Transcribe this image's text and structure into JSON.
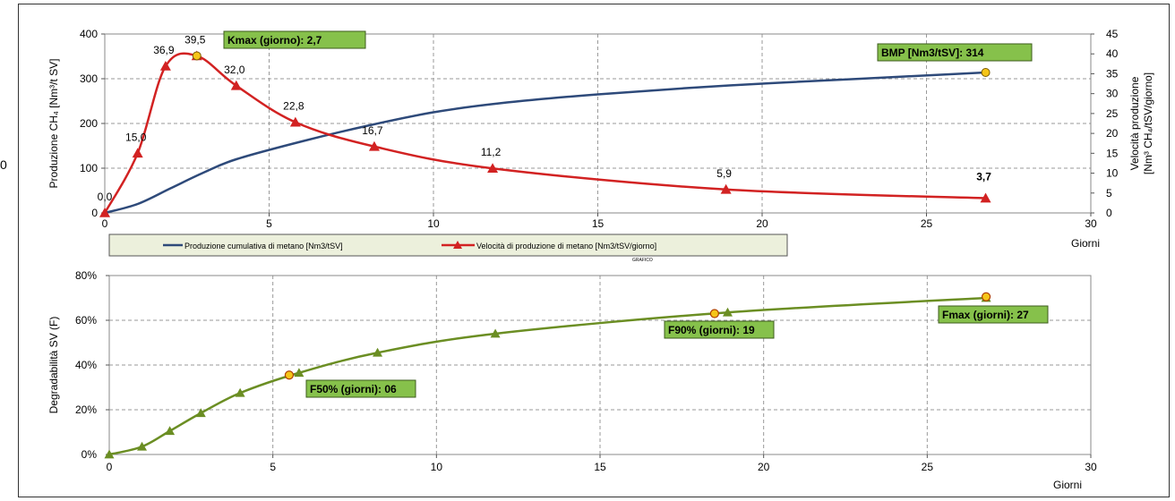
{
  "stray_char": "0",
  "chart_data": [
    {
      "type": "line",
      "id": "top",
      "xlabel": "Giorni",
      "ylabel_left": "Produzione CH₄ [Nm³/t SV]",
      "ylabel_right_lines": [
        "Velocità produzione",
        "[Nm³ CH₄/tSV/giorno]"
      ],
      "xlim": [
        0,
        30
      ],
      "ylim_left": [
        0,
        400
      ],
      "ylim_right": [
        0,
        45
      ],
      "xticks": [
        0,
        5,
        10,
        15,
        20,
        25,
        30
      ],
      "yticks_left": [
        0,
        100,
        200,
        300,
        400
      ],
      "yticks_right": [
        0,
        5,
        10,
        15,
        20,
        25,
        30,
        35,
        40,
        45
      ],
      "grid": true,
      "legend_position": "bottom",
      "series": [
        {
          "name": "Produzione cumulativa di metano [Nm3/tSV]",
          "axis": "left",
          "color": "#2e4a7a",
          "x": [
            0,
            1,
            2,
            3,
            4,
            6,
            8,
            10,
            12,
            15,
            19,
            23,
            26.8
          ],
          "y": [
            0,
            20,
            55,
            90,
            120,
            160,
            195,
            225,
            245,
            265,
            285,
            300,
            314
          ]
        },
        {
          "name": "Velocità di produzione di metano [Nm3/tSV/giorno]",
          "axis": "right",
          "color": "#d22222",
          "x": [
            0,
            1.0,
            1.85,
            2.8,
            4.0,
            5.8,
            8.2,
            11.8,
            18.9,
            26.8
          ],
          "y": [
            0.0,
            15.0,
            36.9,
            39.5,
            32.0,
            22.8,
            16.7,
            11.2,
            5.9,
            3.7
          ],
          "point_labels": [
            "0,0",
            "15,0",
            "36,9",
            "39,5",
            "32,0",
            "22,8",
            "16,7",
            "11,2",
            "5,9",
            "3,7"
          ]
        }
      ],
      "markers": [
        {
          "x": 2.8,
          "y_right": 39.5,
          "color": "#f5c518"
        },
        {
          "x": 26.8,
          "y_left": 314,
          "color": "#f5c518"
        }
      ],
      "annotations": [
        {
          "text": "Kmax (giorno):  2,7"
        },
        {
          "text": "BMP [Nm3/tSV]:  314"
        }
      ],
      "small_note": "GRAFICO"
    },
    {
      "type": "line",
      "id": "bottom",
      "xlabel": "Giorni",
      "ylabel": "Degradabilità SV (F)",
      "xlim": [
        0,
        30
      ],
      "ylim": [
        0,
        80
      ],
      "xticks": [
        0,
        5,
        10,
        15,
        20,
        25,
        30
      ],
      "ytick_labels": [
        "0%",
        "20%",
        "40%",
        "60%",
        "80%"
      ],
      "yticks": [
        0,
        20,
        40,
        60,
        80
      ],
      "grid": true,
      "series": [
        {
          "name": "Degradabilità SV",
          "color": "#6b8e23",
          "x": [
            0,
            1.0,
            1.85,
            2.8,
            4.0,
            5.8,
            8.2,
            11.8,
            18.9,
            26.8
          ],
          "y": [
            0,
            3.5,
            10.5,
            18.5,
            27.5,
            36.5,
            45.5,
            54.0,
            63.5,
            70.0
          ]
        }
      ],
      "markers": [
        {
          "x": 5.5,
          "y": 35.5,
          "color": "#f5c518"
        },
        {
          "x": 18.5,
          "y": 63.0,
          "color": "#f5c518"
        },
        {
          "x": 26.8,
          "y": 70.5,
          "color": "#f5c518"
        }
      ],
      "annotations": [
        {
          "text": "F50% (giorni):  06"
        },
        {
          "text": "F90% (giorni):  19"
        },
        {
          "text": "Fmax (giorni):  27"
        }
      ]
    }
  ]
}
